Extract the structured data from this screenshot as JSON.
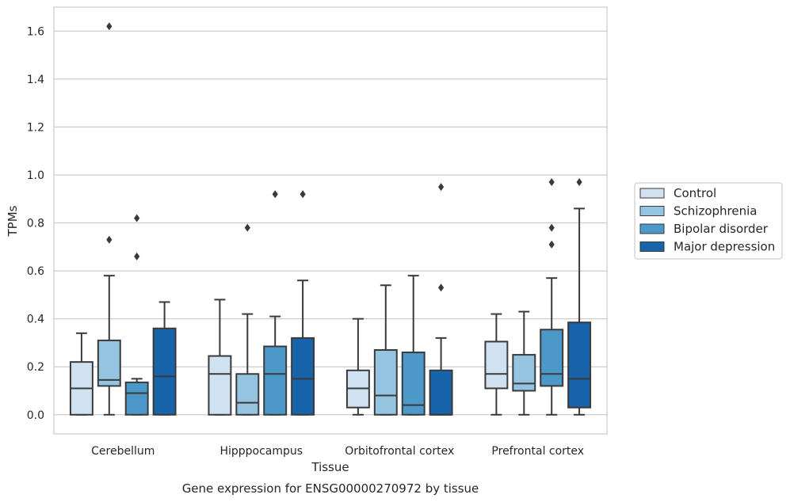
{
  "chart_data": {
    "type": "box",
    "title": "Gene expression for ENSG00000270972 by tissue",
    "xlabel": "Tissue",
    "ylabel": "TPMs",
    "ylim": [
      -0.08,
      1.7
    ],
    "yticks": [
      "0.0",
      "0.2",
      "0.4",
      "0.6",
      "0.8",
      "1.0",
      "1.2",
      "1.4",
      "1.6"
    ],
    "grid": true,
    "legend_position": "right",
    "categories": [
      "Cerebellum",
      "Hipppocampus",
      "Orbitofrontal cortex",
      "Prefrontal cortex"
    ],
    "series": [
      {
        "name": "Control",
        "color": "#d0e1f2",
        "boxes": [
          {
            "low": 0.0,
            "q1": 0.0,
            "median": 0.11,
            "q3": 0.22,
            "high": 0.34,
            "outliers": []
          },
          {
            "low": 0.0,
            "q1": 0.0,
            "median": 0.17,
            "q3": 0.245,
            "high": 0.48,
            "outliers": []
          },
          {
            "low": 0.0,
            "q1": 0.03,
            "median": 0.11,
            "q3": 0.185,
            "high": 0.4,
            "outliers": []
          },
          {
            "low": 0.0,
            "q1": 0.11,
            "median": 0.17,
            "q3": 0.305,
            "high": 0.42,
            "outliers": []
          }
        ]
      },
      {
        "name": "Schizophrenia",
        "color": "#94c4df",
        "boxes": [
          {
            "low": 0.0,
            "q1": 0.12,
            "median": 0.145,
            "q3": 0.31,
            "high": 0.58,
            "outliers": [
              0.73,
              1.62
            ]
          },
          {
            "low": 0.0,
            "q1": 0.0,
            "median": 0.05,
            "q3": 0.17,
            "high": 0.42,
            "outliers": [
              0.78
            ]
          },
          {
            "low": 0.0,
            "q1": 0.0,
            "median": 0.08,
            "q3": 0.27,
            "high": 0.54,
            "outliers": []
          },
          {
            "low": 0.0,
            "q1": 0.1,
            "median": 0.13,
            "q3": 0.25,
            "high": 0.43,
            "outliers": []
          }
        ]
      },
      {
        "name": "Bipolar disorder",
        "color": "#4b98c9",
        "boxes": [
          {
            "low": 0.0,
            "q1": 0.0,
            "median": 0.09,
            "q3": 0.135,
            "high": 0.15,
            "outliers": [
              0.66,
              0.82
            ]
          },
          {
            "low": 0.0,
            "q1": 0.0,
            "median": 0.17,
            "q3": 0.285,
            "high": 0.41,
            "outliers": [
              0.92
            ]
          },
          {
            "low": 0.0,
            "q1": 0.0,
            "median": 0.04,
            "q3": 0.26,
            "high": 0.58,
            "outliers": []
          },
          {
            "low": 0.0,
            "q1": 0.12,
            "median": 0.17,
            "q3": 0.355,
            "high": 0.57,
            "outliers": [
              0.71,
              0.78,
              0.97
            ]
          }
        ]
      },
      {
        "name": "Major depression",
        "color": "#1764ab",
        "boxes": [
          {
            "low": 0.0,
            "q1": 0.0,
            "median": 0.16,
            "q3": 0.36,
            "high": 0.47,
            "outliers": []
          },
          {
            "low": 0.0,
            "q1": 0.0,
            "median": 0.15,
            "q3": 0.32,
            "high": 0.56,
            "outliers": [
              0.92
            ]
          },
          {
            "low": 0.0,
            "q1": 0.0,
            "median": 0.0,
            "q3": 0.185,
            "high": 0.32,
            "outliers": [
              0.53,
              0.95
            ]
          },
          {
            "low": 0.0,
            "q1": 0.03,
            "median": 0.15,
            "q3": 0.385,
            "high": 0.86,
            "outliers": [
              0.97
            ]
          }
        ]
      }
    ]
  }
}
